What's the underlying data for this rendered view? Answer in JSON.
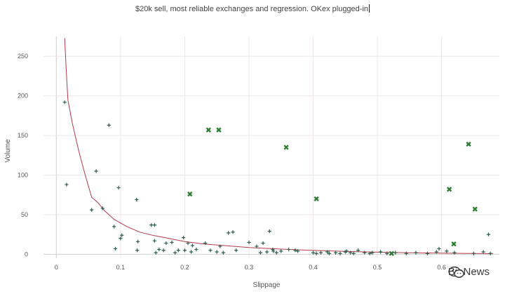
{
  "watermark": {
    "text": "BiaNews",
    "icon": "wechat-icon"
  },
  "chart_data": {
    "type": "scatter",
    "title": "$20k sell, most reliable exchanges and regression. OKex plugged-in",
    "xlabel": "Slippage",
    "ylabel": "Volume",
    "xlim": [
      -0.02,
      0.69
    ],
    "ylim": [
      -5,
      275
    ],
    "x_ticks": [
      "0",
      "0.1",
      "0.2",
      "0.3",
      "0.4",
      "0.5",
      "0.6"
    ],
    "x_tick_values": [
      0,
      0.1,
      0.2,
      0.3,
      0.4,
      0.5,
      0.6
    ],
    "y_ticks": [
      "0",
      "50",
      "100",
      "150",
      "200",
      "250"
    ],
    "y_tick_values": [
      0,
      50,
      100,
      150,
      200,
      250
    ],
    "grid": true,
    "colors": {
      "plus": "#2e5d4e",
      "x": "#2e7d32",
      "line": "#b23a4a"
    },
    "series": [
      {
        "marker": "plus",
        "points": [
          [
            0.013,
            192
          ],
          [
            0.016,
            88
          ],
          [
            0.055,
            56
          ],
          [
            0.062,
            105
          ],
          [
            0.072,
            58
          ],
          [
            0.082,
            163
          ],
          [
            0.09,
            35
          ],
          [
            0.092,
            7
          ],
          [
            0.097,
            84
          ],
          [
            0.1,
            20
          ],
          [
            0.102,
            24
          ],
          [
            0.125,
            69
          ],
          [
            0.127,
            16
          ],
          [
            0.126,
            5
          ],
          [
            0.148,
            37
          ],
          [
            0.153,
            37
          ],
          [
            0.153,
            17
          ],
          [
            0.155,
            2
          ],
          [
            0.16,
            6
          ],
          [
            0.167,
            5
          ],
          [
            0.171,
            14
          ],
          [
            0.18,
            15
          ],
          [
            0.185,
            2
          ],
          [
            0.19,
            5
          ],
          [
            0.198,
            21
          ],
          [
            0.2,
            5
          ],
          [
            0.205,
            14
          ],
          [
            0.21,
            3
          ],
          [
            0.212,
            11
          ],
          [
            0.218,
            6
          ],
          [
            0.232,
            14
          ],
          [
            0.24,
            5
          ],
          [
            0.25,
            3
          ],
          [
            0.255,
            10
          ],
          [
            0.26,
            2
          ],
          [
            0.268,
            27
          ],
          [
            0.275,
            28
          ],
          [
            0.28,
            5
          ],
          [
            0.3,
            15
          ],
          [
            0.312,
            10
          ],
          [
            0.318,
            2
          ],
          [
            0.322,
            14
          ],
          [
            0.328,
            3
          ],
          [
            0.332,
            29
          ],
          [
            0.337,
            6
          ],
          [
            0.338,
            4
          ],
          [
            0.343,
            2
          ],
          [
            0.35,
            4
          ],
          [
            0.362,
            6
          ],
          [
            0.372,
            5
          ],
          [
            0.376,
            4
          ],
          [
            0.4,
            2
          ],
          [
            0.405,
            1
          ],
          [
            0.412,
            2
          ],
          [
            0.422,
            3
          ],
          [
            0.425,
            1
          ],
          [
            0.435,
            2
          ],
          [
            0.442,
            1
          ],
          [
            0.45,
            3
          ],
          [
            0.452,
            4
          ],
          [
            0.458,
            2
          ],
          [
            0.463,
            1
          ],
          [
            0.47,
            5
          ],
          [
            0.48,
            2
          ],
          [
            0.488,
            1
          ],
          [
            0.492,
            2
          ],
          [
            0.505,
            3
          ],
          [
            0.515,
            1
          ],
          [
            0.528,
            2
          ],
          [
            0.545,
            1
          ],
          [
            0.56,
            2
          ],
          [
            0.578,
            1
          ],
          [
            0.592,
            3
          ],
          [
            0.596,
            7
          ],
          [
            0.608,
            4
          ],
          [
            0.62,
            2
          ],
          [
            0.65,
            1
          ],
          [
            0.665,
            3
          ],
          [
            0.673,
            25
          ],
          [
            0.676,
            1
          ]
        ]
      },
      {
        "marker": "x",
        "points": [
          [
            0.208,
            76
          ],
          [
            0.237,
            157
          ],
          [
            0.253,
            157
          ],
          [
            0.358,
            135
          ],
          [
            0.405,
            70
          ],
          [
            0.522,
            1
          ],
          [
            0.612,
            82
          ],
          [
            0.619,
            13
          ],
          [
            0.642,
            139
          ],
          [
            0.652,
            57
          ]
        ]
      },
      {
        "marker": "line",
        "points": [
          [
            0.013,
            273
          ],
          [
            0.015,
            240
          ],
          [
            0.018,
            195
          ],
          [
            0.025,
            165
          ],
          [
            0.035,
            130
          ],
          [
            0.045,
            100
          ],
          [
            0.055,
            72
          ],
          [
            0.065,
            65
          ],
          [
            0.075,
            55
          ],
          [
            0.09,
            44
          ],
          [
            0.11,
            35
          ],
          [
            0.13,
            28
          ],
          [
            0.15,
            24
          ],
          [
            0.175,
            20
          ],
          [
            0.2,
            16
          ],
          [
            0.23,
            13
          ],
          [
            0.26,
            11
          ],
          [
            0.3,
            8.5
          ],
          [
            0.35,
            6.5
          ],
          [
            0.4,
            4.8
          ],
          [
            0.45,
            3.6
          ],
          [
            0.5,
            2.6
          ],
          [
            0.55,
            1.9
          ],
          [
            0.6,
            1.4
          ],
          [
            0.65,
            1.0
          ],
          [
            0.68,
            0.8
          ]
        ]
      }
    ]
  }
}
